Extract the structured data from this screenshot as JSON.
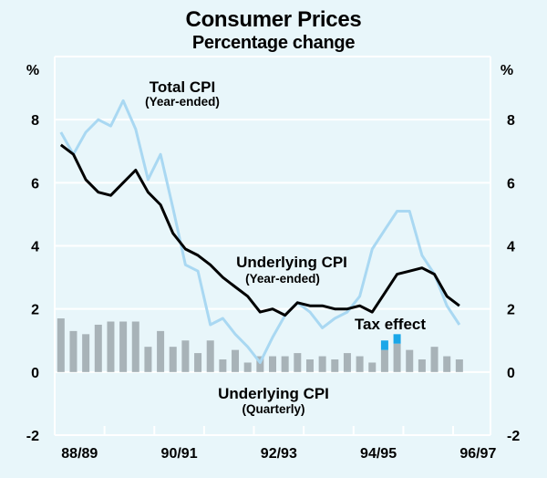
{
  "chart_data": {
    "type": "bar+line",
    "title": "Consumer Prices",
    "subtitle": "Percentage change",
    "ylabel_left": "%",
    "ylabel_right": "%",
    "ylim": [
      -2,
      10
    ],
    "yticks": [
      -2,
      0,
      2,
      4,
      6,
      8
    ],
    "grid": true,
    "x_quarters_span": 35,
    "x_tick_every_quarters": 4,
    "x_labels": [
      {
        "label": "88/89",
        "fy_index": 0
      },
      {
        "label": "90/91",
        "fy_index": 2
      },
      {
        "label": "92/93",
        "fy_index": 4
      },
      {
        "label": "94/95",
        "fy_index": 6
      },
      {
        "label": "96/97",
        "fy_index": 8
      }
    ],
    "colors": {
      "total_cpi": "#a9d8f2",
      "underlying_year": "#000000",
      "underlying_quarterly": "#a8b3b8",
      "tax_effect": "#1aa7e8",
      "grid": "#ffffff",
      "background": "#e8f6fa"
    },
    "series": [
      {
        "name": "Total CPI (Year-ended)",
        "kind": "line",
        "values": [
          7.6,
          6.9,
          7.6,
          8.0,
          7.8,
          8.6,
          7.7,
          6.1,
          6.9,
          5.2,
          3.4,
          3.2,
          1.5,
          1.7,
          1.2,
          0.8,
          0.3,
          1.1,
          1.8,
          2.2,
          1.9,
          1.4,
          1.7,
          1.9,
          2.4,
          3.9,
          4.5,
          5.1,
          5.1,
          3.7,
          3.1,
          2.1,
          1.5
        ]
      },
      {
        "name": "Underlying CPI (Year-ended)",
        "kind": "line",
        "values": [
          7.2,
          6.9,
          6.1,
          5.7,
          5.6,
          6.0,
          6.4,
          5.7,
          5.3,
          4.4,
          3.9,
          3.7,
          3.4,
          3.0,
          2.7,
          2.4,
          1.9,
          2.0,
          1.8,
          2.2,
          2.1,
          2.1,
          2.0,
          2.0,
          2.1,
          1.9,
          2.5,
          3.1,
          3.2,
          3.3,
          3.1,
          2.4,
          2.1
        ]
      },
      {
        "name": "Underlying CPI (Quarterly)",
        "kind": "bar",
        "values": [
          1.7,
          1.3,
          1.2,
          1.5,
          1.6,
          1.6,
          1.6,
          0.8,
          1.3,
          0.8,
          1.0,
          0.6,
          1.0,
          0.4,
          0.7,
          0.3,
          0.5,
          0.5,
          0.5,
          0.6,
          0.4,
          0.5,
          0.4,
          0.6,
          0.5,
          0.3,
          0.7,
          0.9,
          0.7,
          0.4,
          0.8,
          0.5,
          0.4
        ]
      },
      {
        "name": "Tax effect",
        "kind": "bar-stacked",
        "values": [
          0,
          0,
          0,
          0,
          0,
          0,
          0,
          0,
          0,
          0,
          0,
          0,
          0,
          0,
          0,
          0,
          0,
          0,
          0,
          0,
          0,
          0,
          0,
          0,
          0,
          0,
          0.3,
          0.3,
          0,
          0,
          0,
          0,
          0
        ]
      }
    ],
    "annotations": {
      "total_cpi": {
        "line1": "Total CPI",
        "line2": "(Year-ended)"
      },
      "underlying_year": {
        "line1": "Underlying CPI",
        "line2": "(Year-ended)"
      },
      "underlying_quarterly": {
        "line1": "Underlying CPI",
        "line2": "(Quarterly)"
      },
      "tax_effect": {
        "line1": "Tax effect"
      }
    }
  }
}
